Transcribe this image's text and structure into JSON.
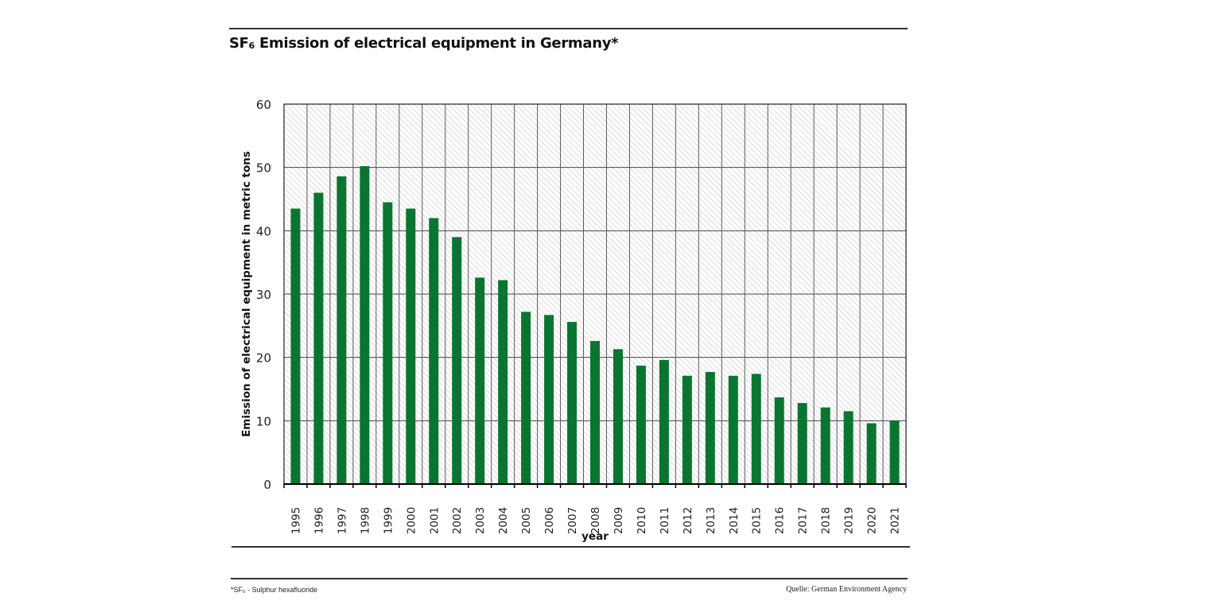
{
  "title_prefix": "SF",
  "title_subscript": "6",
  "title_rest": " Emission of electrical equipment in Germany*",
  "footnote": "*SF₆ - Sulphur hexafluoride",
  "source": "Quelle: German Environment Agency",
  "colors": {
    "bar": "#0a7530",
    "grid": "#444444",
    "hatch": "#c8c8c8",
    "rule": "#333333"
  },
  "chart_data": {
    "type": "bar",
    "title": "SF6 Emission of electrical equipment in Germany*",
    "xlabel": "year",
    "ylabel": "Emission of electrical equipment in metric tons",
    "ylim": [
      0,
      60
    ],
    "yticks": [
      0,
      10,
      20,
      30,
      40,
      50,
      60
    ],
    "grid": true,
    "categories": [
      "1995",
      "1996",
      "1997",
      "1998",
      "1999",
      "2000",
      "2001",
      "2002",
      "2003",
      "2004",
      "2005",
      "2006",
      "2007",
      "2008",
      "2009",
      "2010",
      "2011",
      "2012",
      "2013",
      "2014",
      "2015",
      "2016",
      "2017",
      "2018",
      "2019",
      "2020",
      "2021"
    ],
    "values": [
      43.5,
      46.0,
      48.6,
      50.2,
      44.5,
      43.5,
      42.0,
      39.0,
      32.6,
      32.2,
      27.2,
      26.7,
      25.6,
      22.6,
      21.3,
      18.7,
      19.6,
      17.1,
      17.7,
      17.1,
      17.4,
      13.7,
      12.8,
      12.1,
      11.5,
      9.6,
      10.0
    ]
  }
}
